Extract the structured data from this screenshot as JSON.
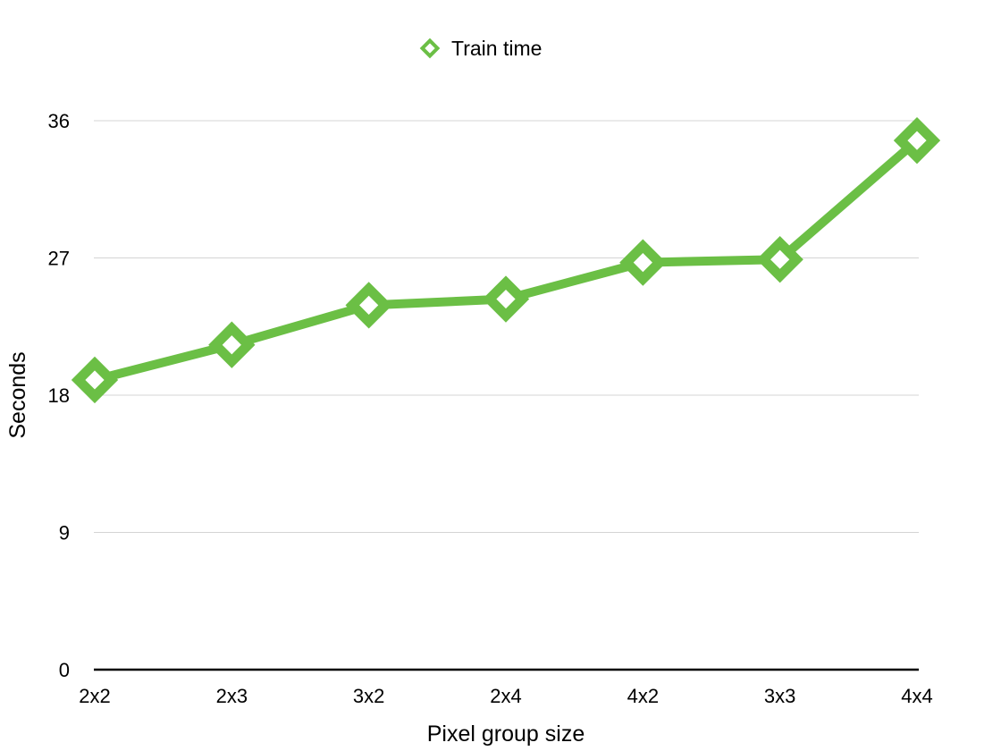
{
  "chart_data": {
    "type": "line",
    "title": "",
    "xlabel": "Pixel group size",
    "ylabel": "Seconds",
    "categories": [
      "2x2",
      "2x3",
      "3x2",
      "2x4",
      "4x2",
      "3x3",
      "4x4"
    ],
    "series": [
      {
        "name": "Train time",
        "values": [
          19.0,
          21.3,
          23.9,
          24.3,
          26.7,
          26.9,
          34.7
        ],
        "color": "#6bbf45"
      }
    ],
    "ylim": [
      0,
      36
    ],
    "yticks": [
      "0",
      "9",
      "18",
      "27",
      "36"
    ],
    "grid": true,
    "legend": "top-center",
    "marker": "diamond"
  }
}
